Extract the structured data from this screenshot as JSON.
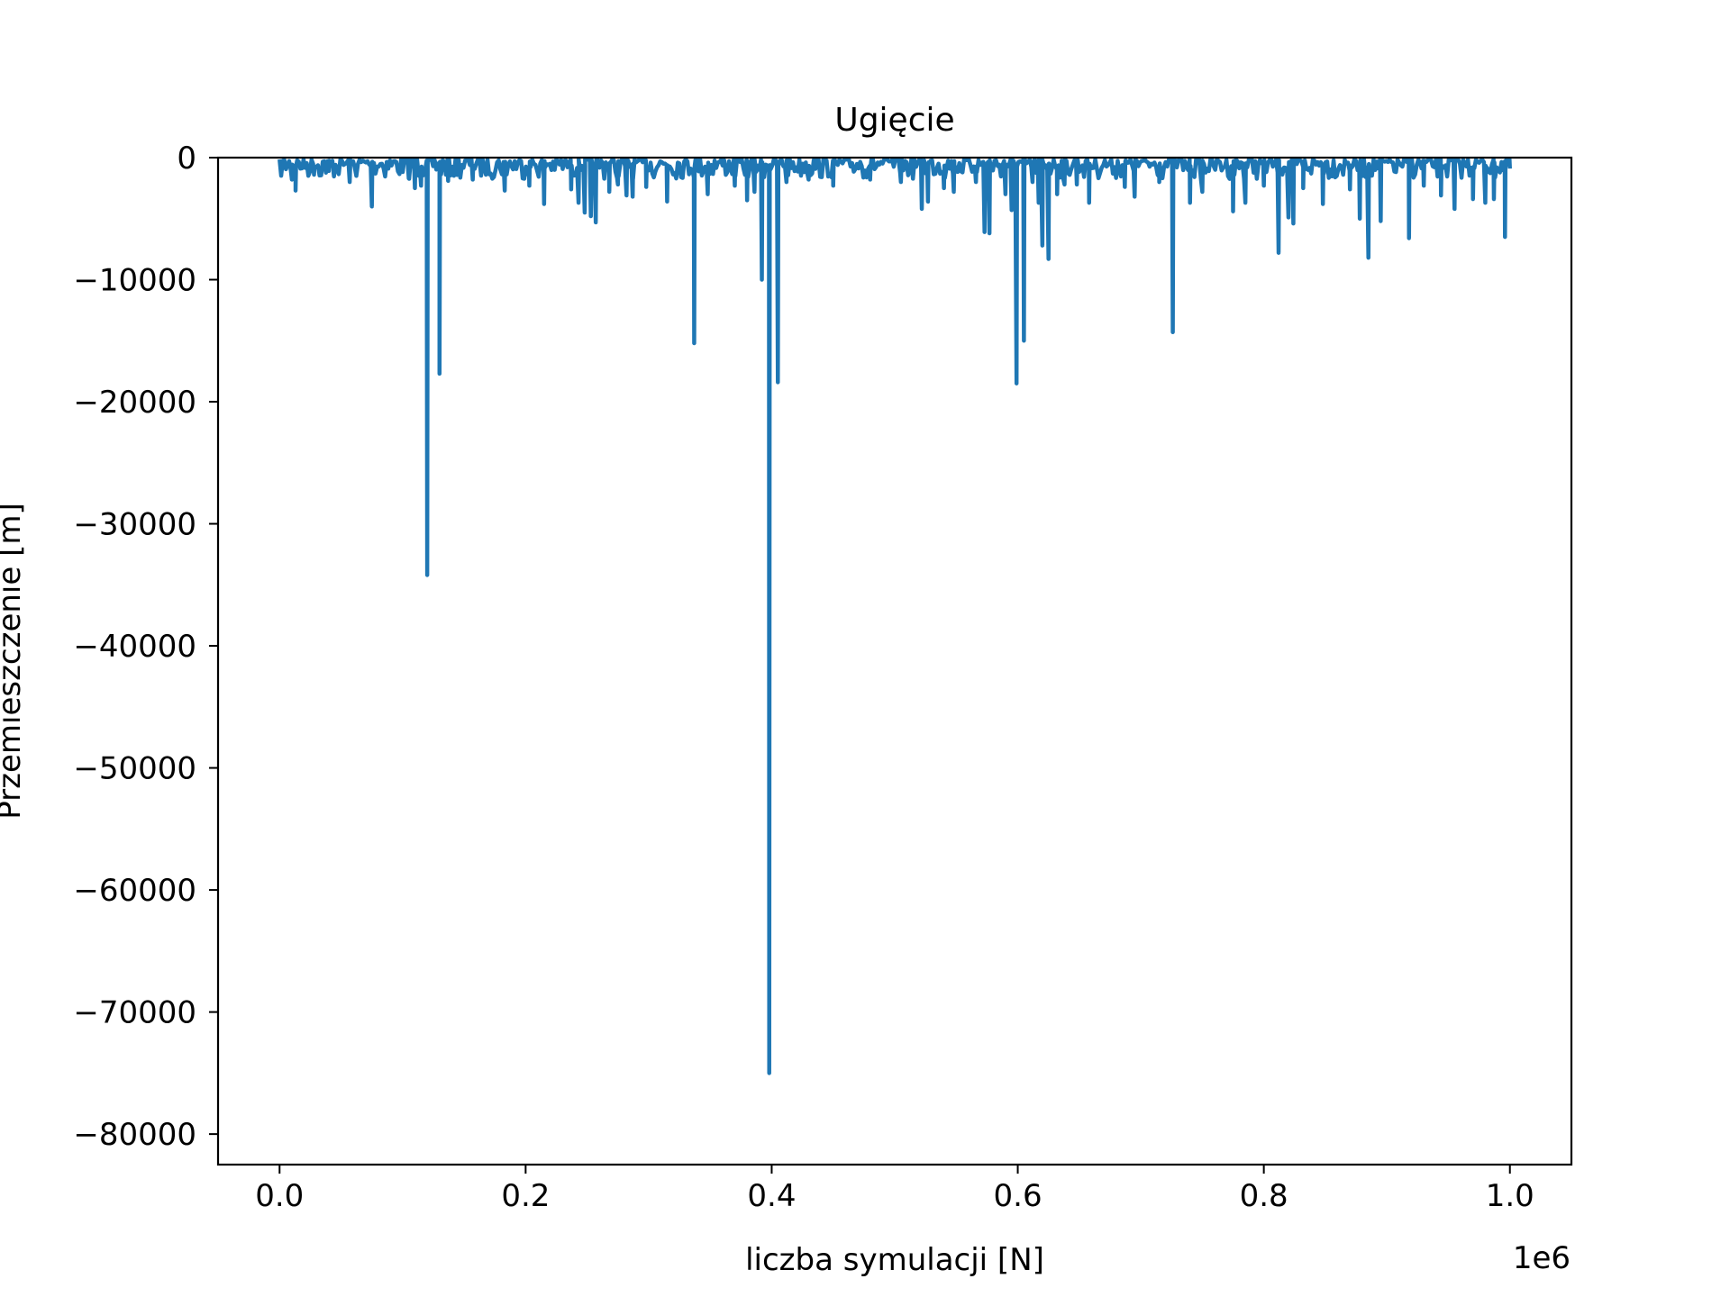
{
  "chart_data": {
    "type": "line",
    "title": "Ugięcie",
    "xlabel": "liczba symulacji [N]",
    "ylabel": "Przemieszczenie [m]",
    "x_offset_label": "1e6",
    "xlim": [
      -0.05,
      1.05
    ],
    "ylim": [
      -82500,
      0
    ],
    "x_ticks": [
      0.0,
      0.2,
      0.4,
      0.6,
      0.8,
      1.0
    ],
    "x_tick_labels": [
      "0.0",
      "0.2",
      "0.4",
      "0.6",
      "0.8",
      "1.0"
    ],
    "y_ticks": [
      0,
      -10000,
      -20000,
      -30000,
      -40000,
      -50000,
      -60000,
      -70000,
      -80000
    ],
    "y_tick_labels": [
      "0",
      "−10000",
      "−20000",
      "−30000",
      "−40000",
      "−50000",
      "−60000",
      "−70000",
      "−80000"
    ],
    "grid": false,
    "line_color": "#1f77b4",
    "series": [
      {
        "spikes": [
          [
            0.01,
            -1800
          ],
          [
            0.013,
            -2700
          ],
          [
            0.028,
            -1400
          ],
          [
            0.04,
            -1100
          ],
          [
            0.057,
            -2000
          ],
          [
            0.075,
            -4000
          ],
          [
            0.105,
            -1700
          ],
          [
            0.11,
            -2500
          ],
          [
            0.115,
            -2300
          ],
          [
            0.12,
            -34200
          ],
          [
            0.13,
            -17700
          ],
          [
            0.137,
            -1900
          ],
          [
            0.157,
            -1800
          ],
          [
            0.183,
            -2700
          ],
          [
            0.203,
            -2300
          ],
          [
            0.215,
            -3800
          ],
          [
            0.237,
            -2600
          ],
          [
            0.243,
            -3700
          ],
          [
            0.248,
            -4500
          ],
          [
            0.253,
            -4800
          ],
          [
            0.257,
            -5300
          ],
          [
            0.268,
            -2800
          ],
          [
            0.275,
            -2200
          ],
          [
            0.282,
            -3100
          ],
          [
            0.287,
            -3200
          ],
          [
            0.298,
            -2400
          ],
          [
            0.315,
            -3600
          ],
          [
            0.337,
            -15200
          ],
          [
            0.348,
            -3000
          ],
          [
            0.37,
            -2300
          ],
          [
            0.38,
            -3500
          ],
          [
            0.386,
            -2800
          ],
          [
            0.392,
            -10000
          ],
          [
            0.398,
            -75000
          ],
          [
            0.405,
            -18400
          ],
          [
            0.412,
            -2000
          ],
          [
            0.43,
            -1800
          ],
          [
            0.45,
            -2300
          ],
          [
            0.48,
            -1800
          ],
          [
            0.505,
            -2000
          ],
          [
            0.522,
            -4200
          ],
          [
            0.527,
            -3600
          ],
          [
            0.54,
            -2500
          ],
          [
            0.548,
            -2800
          ],
          [
            0.566,
            -2000
          ],
          [
            0.573,
            -6100
          ],
          [
            0.577,
            -6200
          ],
          [
            0.59,
            -3000
          ],
          [
            0.595,
            -4300
          ],
          [
            0.599,
            -18500
          ],
          [
            0.605,
            -15000
          ],
          [
            0.612,
            -2000
          ],
          [
            0.617,
            -3700
          ],
          [
            0.62,
            -7200
          ],
          [
            0.625,
            -8300
          ],
          [
            0.632,
            -3000
          ],
          [
            0.638,
            -2200
          ],
          [
            0.648,
            -2200
          ],
          [
            0.658,
            -3700
          ],
          [
            0.687,
            -2400
          ],
          [
            0.695,
            -3200
          ],
          [
            0.715,
            -2000
          ],
          [
            0.726,
            -14300
          ],
          [
            0.74,
            -3700
          ],
          [
            0.75,
            -2800
          ],
          [
            0.775,
            -4400
          ],
          [
            0.785,
            -3700
          ],
          [
            0.8,
            -2300
          ],
          [
            0.812,
            -7800
          ],
          [
            0.82,
            -4900
          ],
          [
            0.824,
            -5400
          ],
          [
            0.832,
            -2500
          ],
          [
            0.848,
            -3800
          ],
          [
            0.87,
            -2600
          ],
          [
            0.878,
            -5000
          ],
          [
            0.885,
            -8200
          ],
          [
            0.895,
            -5200
          ],
          [
            0.918,
            -6600
          ],
          [
            0.93,
            -2300
          ],
          [
            0.944,
            -3100
          ],
          [
            0.955,
            -4200
          ],
          [
            0.97,
            -3400
          ],
          [
            0.98,
            -3700
          ],
          [
            0.987,
            -3400
          ],
          [
            0.996,
            -6500
          ]
        ]
      }
    ]
  }
}
